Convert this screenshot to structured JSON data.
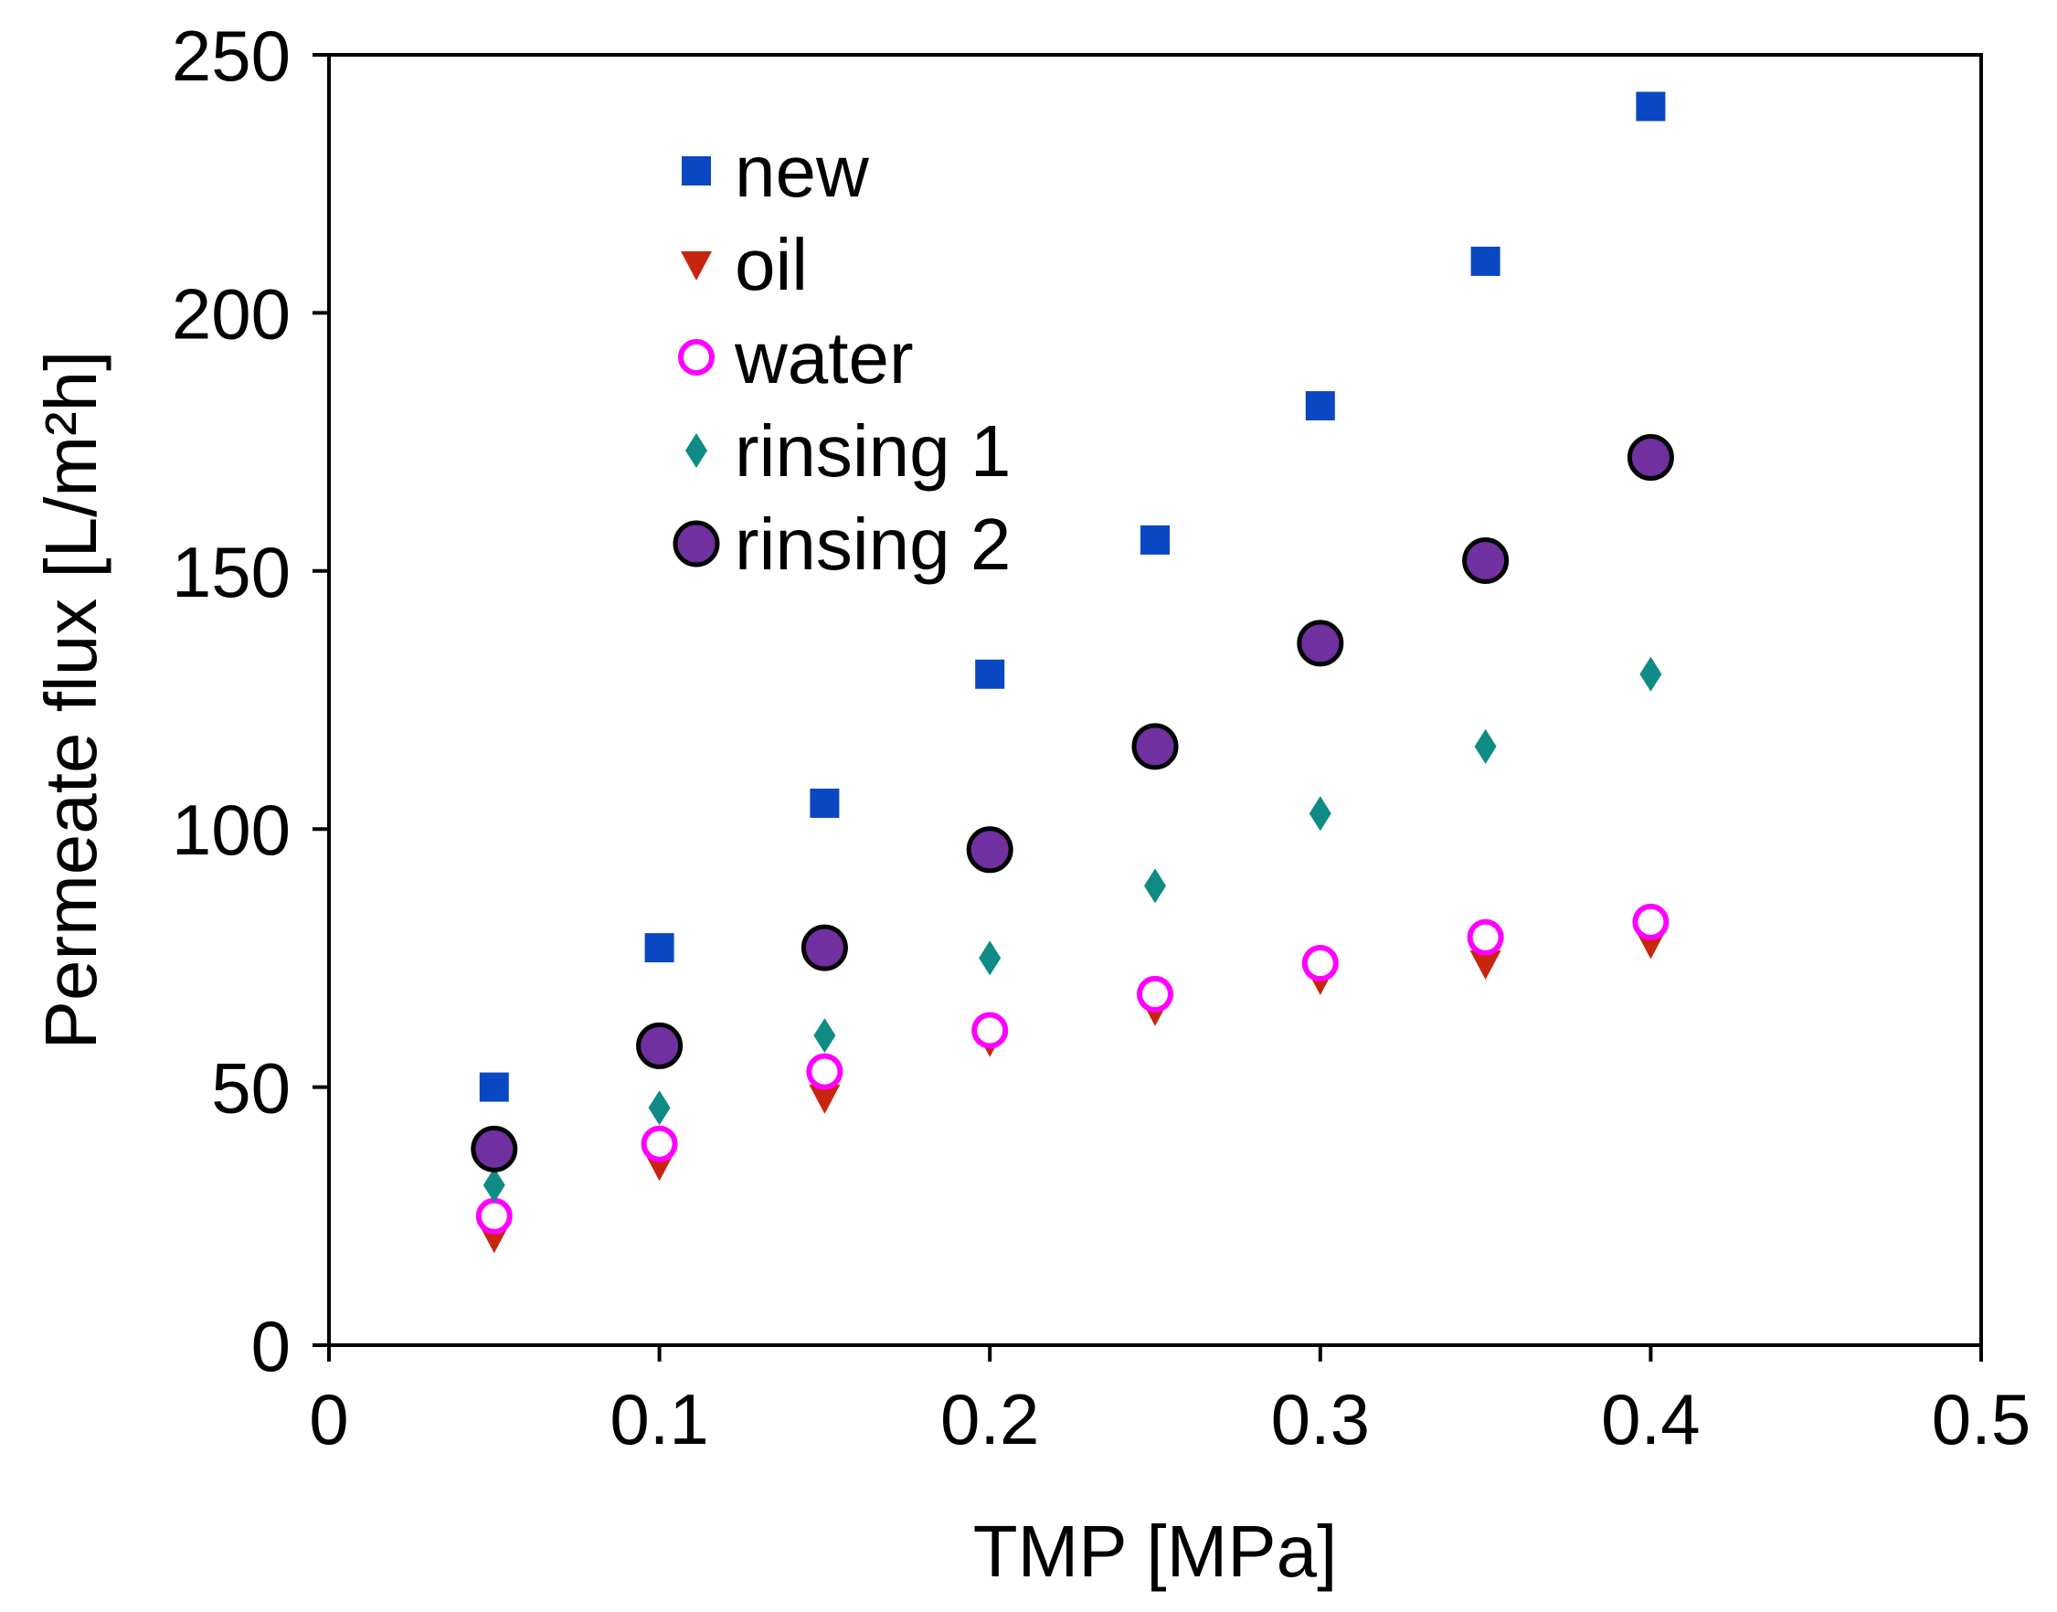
{
  "chart_data": {
    "type": "scatter",
    "xlabel": "TMP [MPa]",
    "ylabel": "Permeate flux [L/m²h]",
    "xlim": [
      0,
      0.5
    ],
    "ylim": [
      0,
      250
    ],
    "xticks": [
      0,
      0.1,
      0.2,
      0.3,
      0.4,
      0.5
    ],
    "xtick_labels": [
      "0",
      "0.1",
      "0.2",
      "0.3",
      "0.4",
      "0.5"
    ],
    "yticks": [
      0,
      50,
      100,
      150,
      200,
      250
    ],
    "ytick_labels": [
      "0",
      "50",
      "100",
      "150",
      "200",
      "250"
    ],
    "grid": false,
    "legend_position": "top-left",
    "series": [
      {
        "name": "new",
        "marker": "square",
        "color": "#0a47c2",
        "x": [
          0.05,
          0.1,
          0.15,
          0.2,
          0.25,
          0.3,
          0.35,
          0.4
        ],
        "y": [
          50,
          77,
          105,
          130,
          156,
          182,
          210,
          240
        ]
      },
      {
        "name": "oil",
        "marker": "triangle-down",
        "color": "#c8250f",
        "x": [
          0.05,
          0.1,
          0.15,
          0.2,
          0.25,
          0.3,
          0.35,
          0.4
        ],
        "y": [
          21,
          35,
          48,
          59,
          65,
          71,
          74,
          78
        ]
      },
      {
        "name": "water",
        "marker": "circle-open",
        "color": "#ff00ff",
        "x": [
          0.05,
          0.1,
          0.15,
          0.2,
          0.25,
          0.3,
          0.35,
          0.4
        ],
        "y": [
          25,
          39,
          53,
          61,
          68,
          74,
          79,
          82
        ]
      },
      {
        "name": "rinsing 1",
        "marker": "diamond",
        "color": "#0e8b84",
        "x": [
          0.05,
          0.1,
          0.15,
          0.2,
          0.25,
          0.3,
          0.35,
          0.4
        ],
        "y": [
          31,
          46,
          60,
          75,
          89,
          103,
          116,
          130
        ]
      },
      {
        "name": "rinsing 2",
        "marker": "circle-filled",
        "color": "#7030a0",
        "x": [
          0.05,
          0.1,
          0.15,
          0.2,
          0.25,
          0.3,
          0.35,
          0.4
        ],
        "y": [
          38,
          58,
          77,
          96,
          116,
          136,
          152,
          172
        ]
      }
    ]
  }
}
